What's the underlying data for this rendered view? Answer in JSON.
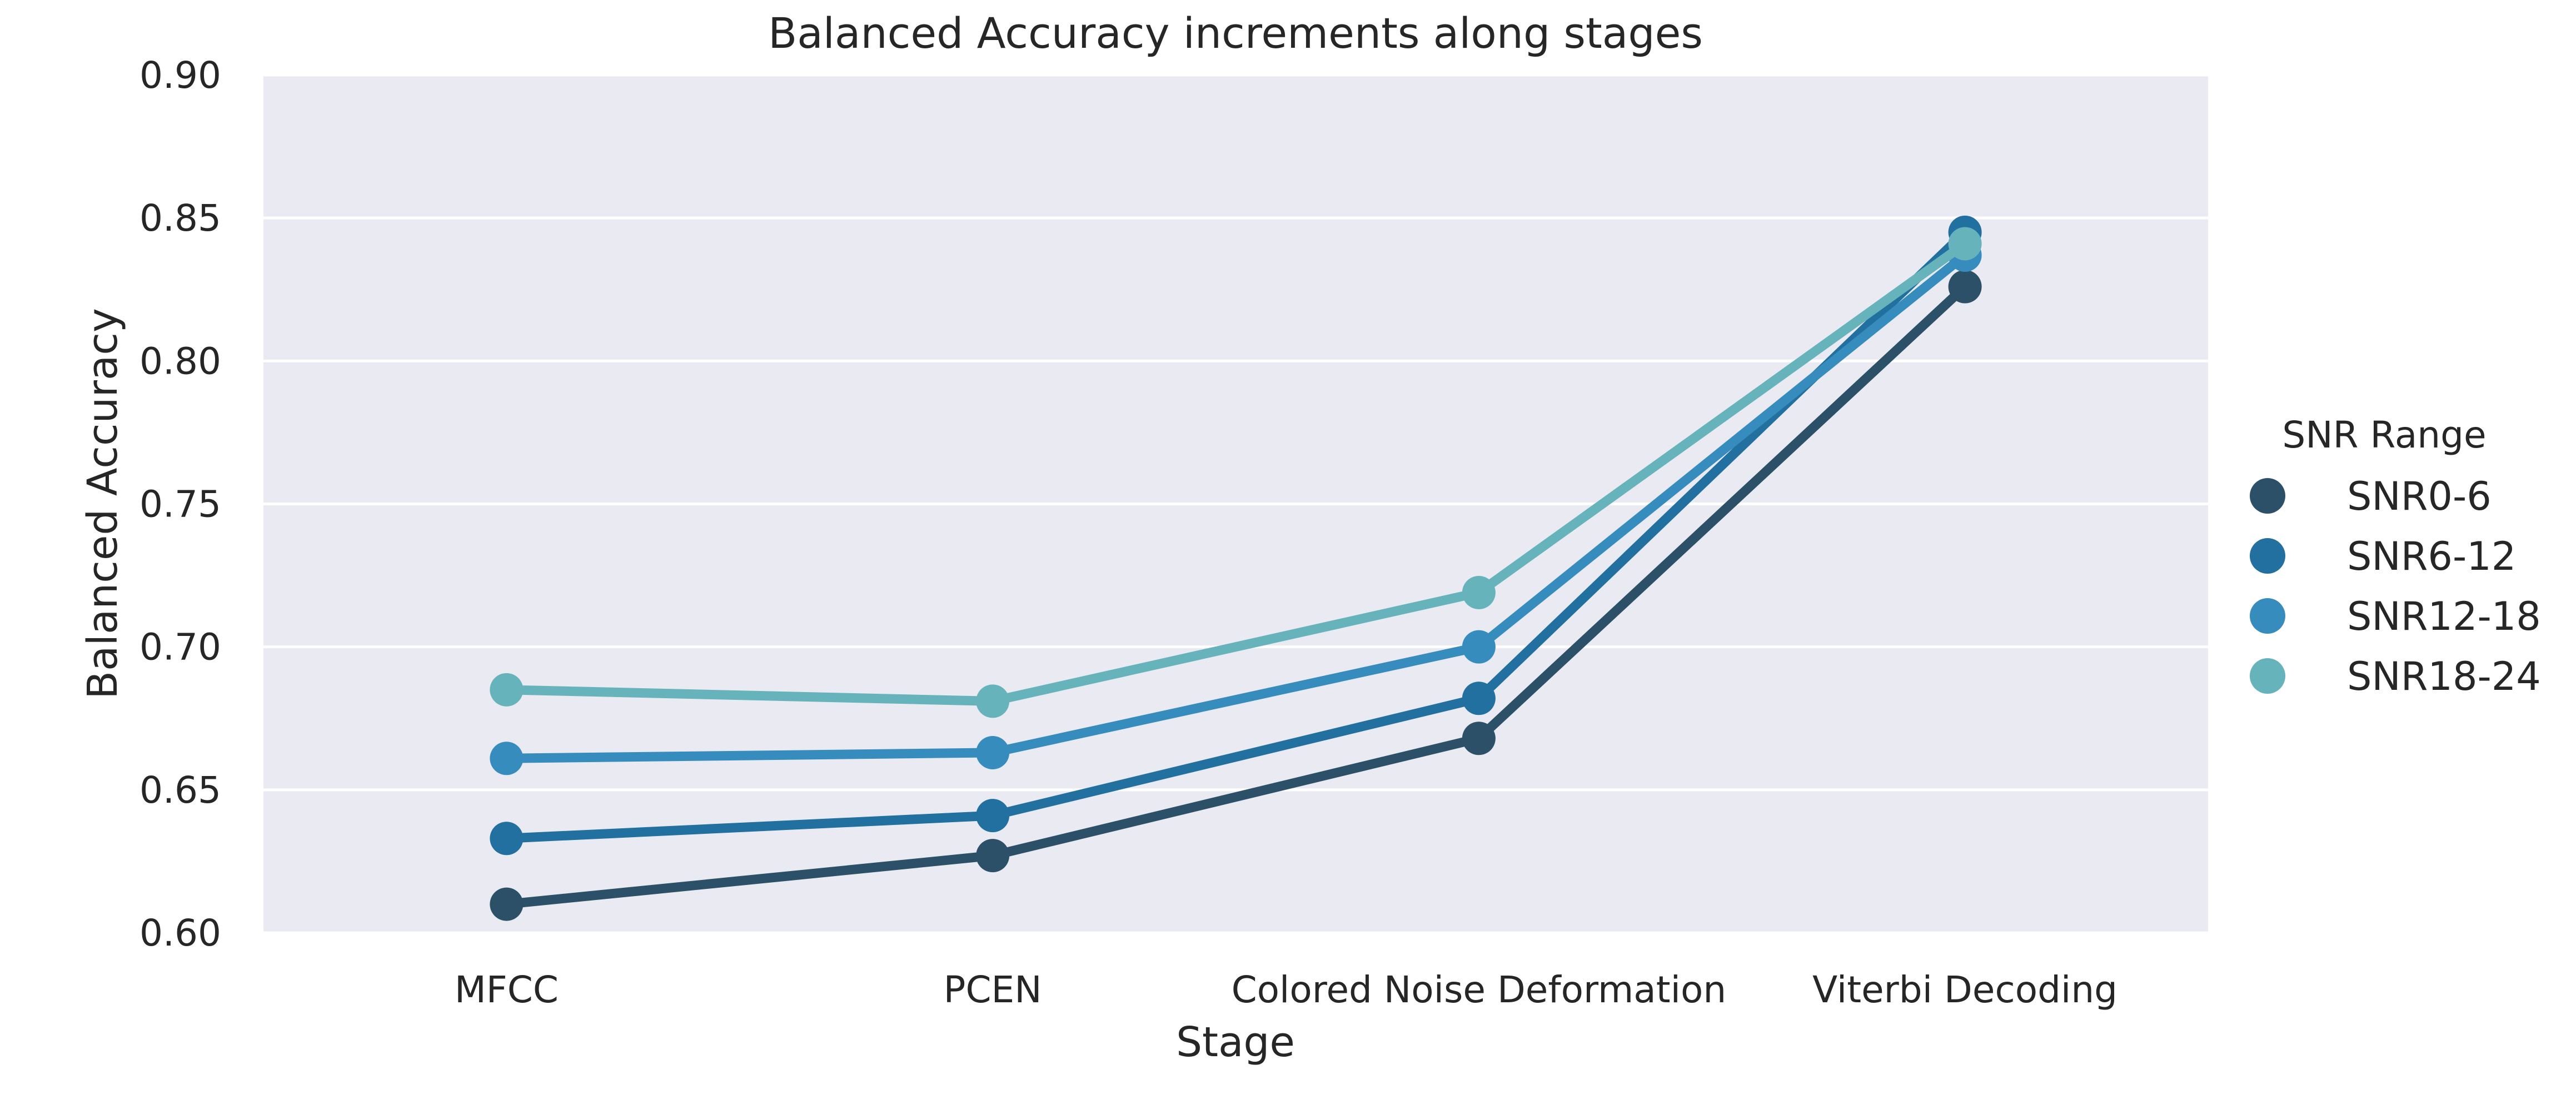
{
  "chart_data": {
    "type": "line",
    "title": "Balanced Accuracy increments along stages",
    "xlabel": "Stage",
    "ylabel": "Balanced Accuracy",
    "categories": [
      "MFCC",
      "PCEN",
      "Colored Noise Deformation",
      "Viterbi Decoding"
    ],
    "ylim": [
      0.6,
      0.9
    ],
    "yticks": [
      0.6,
      0.65,
      0.7,
      0.75,
      0.8,
      0.85,
      0.9
    ],
    "ytick_labels": [
      "0.60",
      "0.65",
      "0.70",
      "0.75",
      "0.80",
      "0.85",
      "0.90"
    ],
    "grid": true,
    "legend": {
      "title": "SNR Range",
      "placement": "right"
    },
    "series": [
      {
        "name": "SNR0-6",
        "color": "#2c5068",
        "values": [
          0.61,
          0.627,
          0.668,
          0.826
        ]
      },
      {
        "name": "SNR6-12",
        "color": "#21709f",
        "values": [
          0.633,
          0.641,
          0.682,
          0.845
        ]
      },
      {
        "name": "SNR12-18",
        "color": "#368cbd",
        "values": [
          0.661,
          0.663,
          0.7,
          0.837
        ]
      },
      {
        "name": "SNR18-24",
        "color": "#67b3bb",
        "values": [
          0.685,
          0.681,
          0.719,
          0.841
        ]
      }
    ]
  }
}
